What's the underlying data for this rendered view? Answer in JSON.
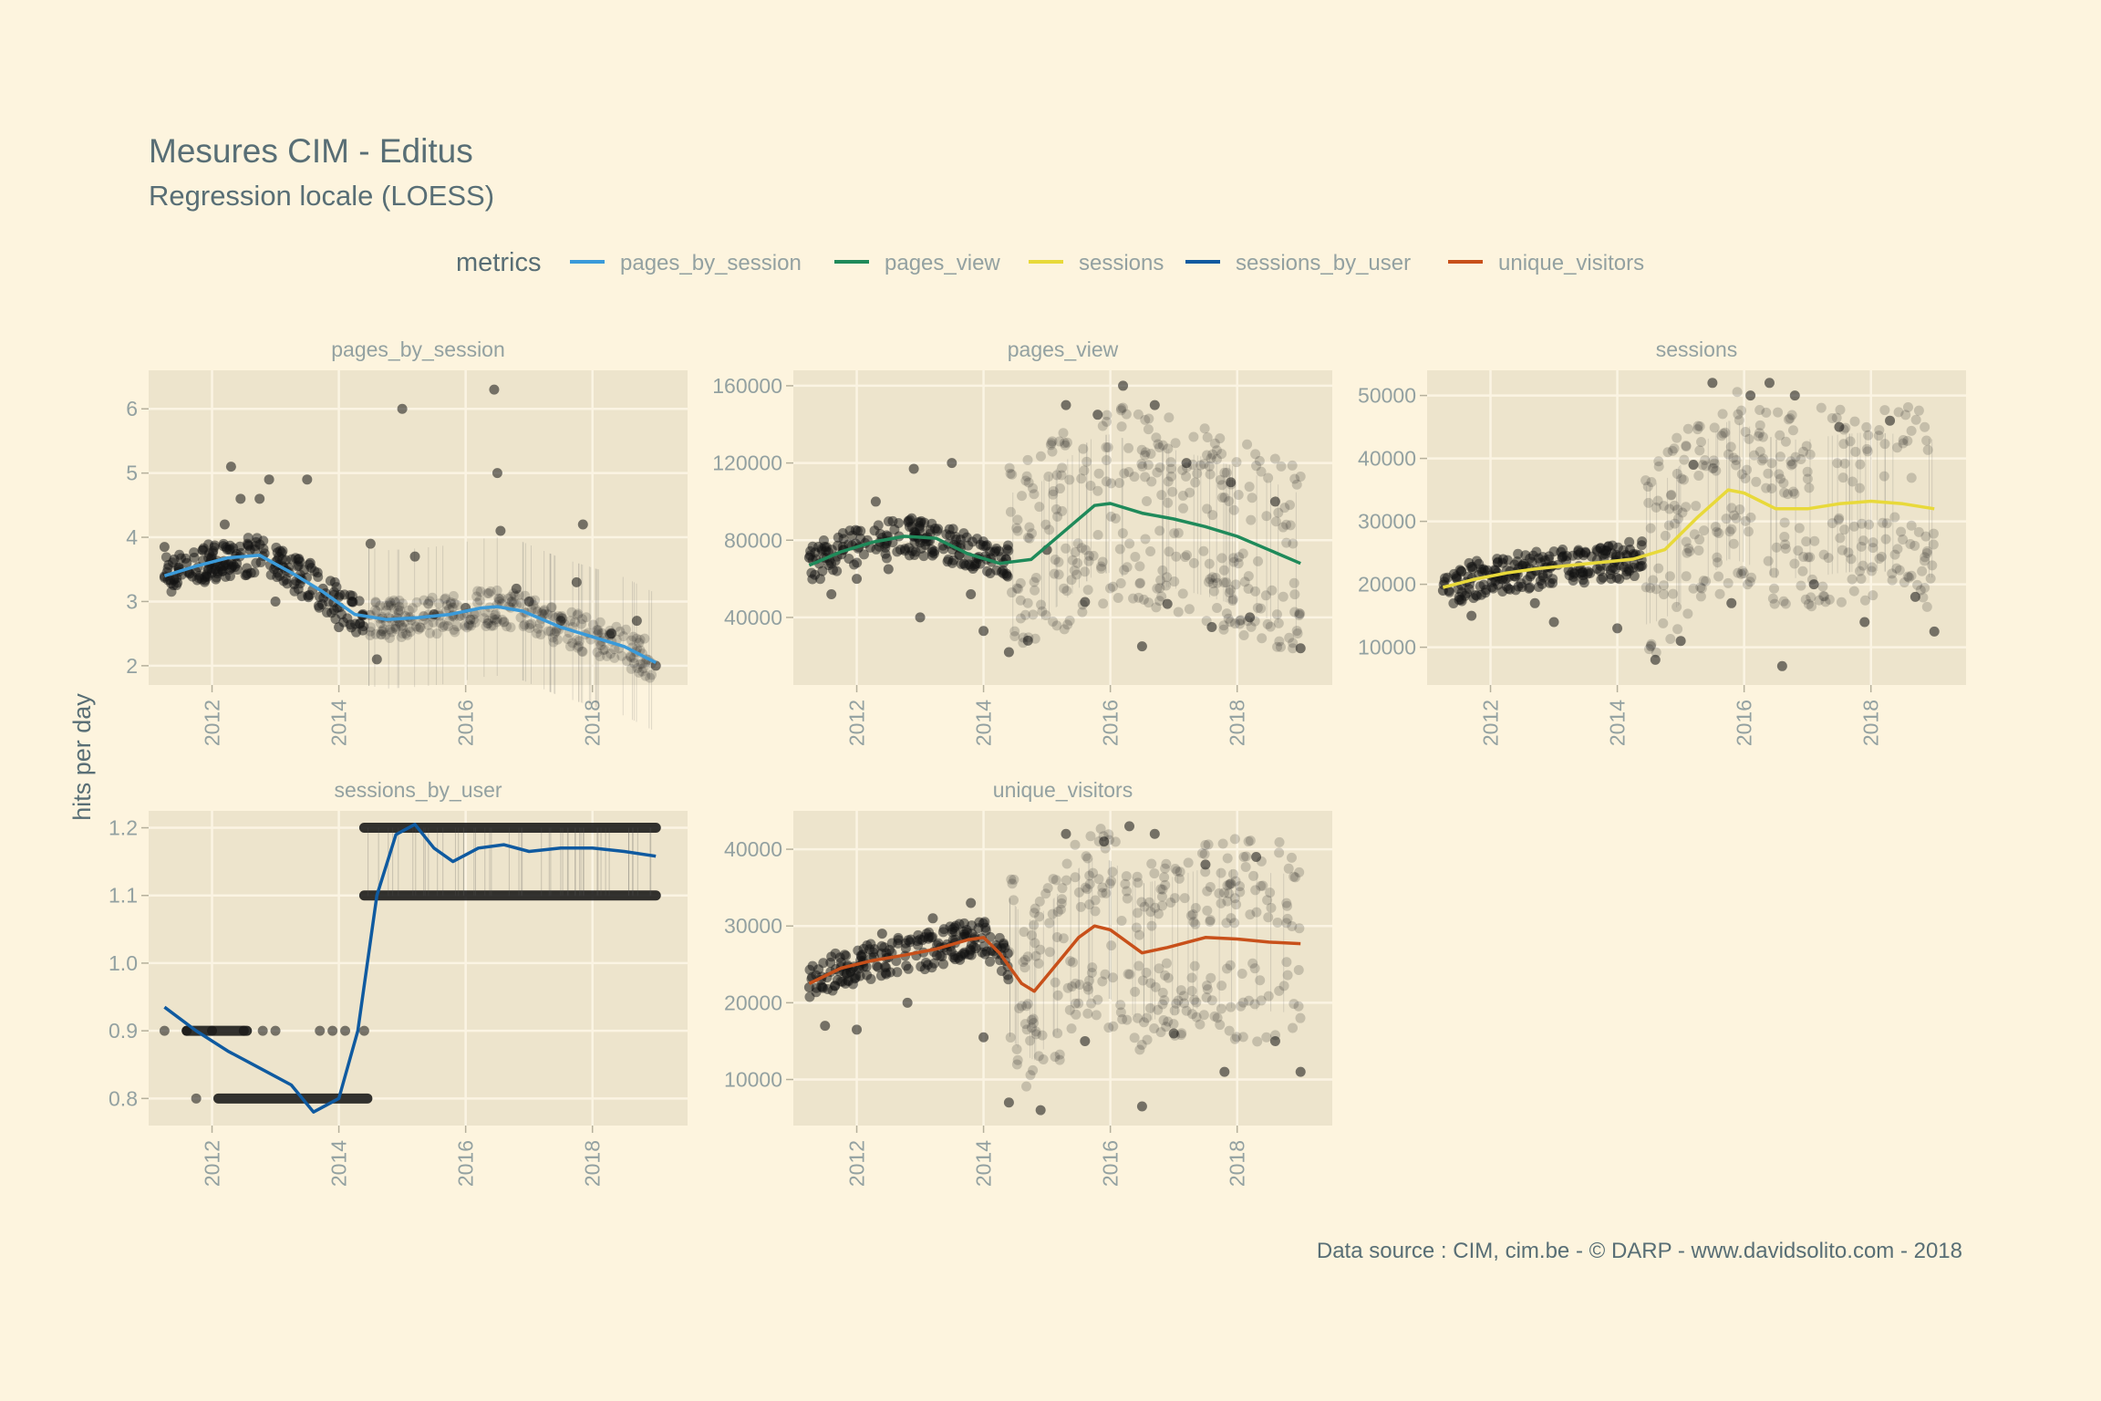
{
  "title": "Mesures CIM - Editus",
  "subtitle": "Regression locale (LOESS)",
  "caption": "Data source : CIM, cim.be - © DARP - www.davidsolito.com - 2018",
  "ylabel": "hits per day",
  "legend": {
    "title": "metrics",
    "position": "top",
    "items": [
      {
        "label": "pages_by_session",
        "color": "#3a9ad9"
      },
      {
        "label": "pages_view",
        "color": "#1f8a5a"
      },
      {
        "label": "sessions",
        "color": "#e8d93a"
      },
      {
        "label": "sessions_by_user",
        "color": "#0f5aa0"
      },
      {
        "label": "unique_visitors",
        "color": "#c8501a"
      }
    ]
  },
  "chart_data": [
    {
      "type": "scatter",
      "name": "pages_by_session",
      "xlim": [
        2011.0,
        2019.5
      ],
      "ylim": [
        1.7,
        6.6
      ],
      "x_ticks": [
        "2012",
        "2014",
        "2016",
        "2018"
      ],
      "y_ticks": [
        "2",
        "3",
        "4",
        "5",
        "6"
      ],
      "grid": true,
      "color": "#3a9ad9",
      "trend": [
        [
          2011.25,
          3.4
        ],
        [
          2011.75,
          3.55
        ],
        [
          2012.25,
          3.68
        ],
        [
          2012.75,
          3.72
        ],
        [
          2013.25,
          3.45
        ],
        [
          2013.75,
          3.15
        ],
        [
          2014.25,
          2.8
        ],
        [
          2014.75,
          2.72
        ],
        [
          2015.25,
          2.75
        ],
        [
          2015.75,
          2.8
        ],
        [
          2016.25,
          2.9
        ],
        [
          2016.5,
          2.92
        ],
        [
          2016.9,
          2.85
        ],
        [
          2017.5,
          2.6
        ],
        [
          2018.0,
          2.45
        ],
        [
          2018.5,
          2.3
        ],
        [
          2019.0,
          2.05
        ]
      ],
      "points": [
        [
          2011.25,
          3.85
        ],
        [
          2011.6,
          3.6
        ],
        [
          2012.05,
          3.5
        ],
        [
          2012.2,
          4.2
        ],
        [
          2012.3,
          5.1
        ],
        [
          2012.45,
          4.6
        ],
        [
          2012.6,
          3.8
        ],
        [
          2012.75,
          4.6
        ],
        [
          2012.9,
          4.9
        ],
        [
          2013.0,
          3.0
        ],
        [
          2013.5,
          4.9
        ],
        [
          2013.55,
          3.6
        ],
        [
          2013.75,
          3.2
        ],
        [
          2014.0,
          2.6
        ],
        [
          2014.2,
          3.0
        ],
        [
          2014.5,
          3.9
        ],
        [
          2014.6,
          2.1
        ],
        [
          2015.0,
          6.0
        ],
        [
          2015.2,
          3.7
        ],
        [
          2015.5,
          2.8
        ],
        [
          2016.0,
          2.9
        ],
        [
          2016.45,
          6.3
        ],
        [
          2016.5,
          5.0
        ],
        [
          2016.55,
          4.1
        ],
        [
          2016.8,
          3.2
        ],
        [
          2017.0,
          3.0
        ],
        [
          2017.5,
          2.7
        ],
        [
          2017.75,
          3.3
        ],
        [
          2017.85,
          4.2
        ],
        [
          2018.3,
          2.5
        ],
        [
          2018.7,
          2.7
        ],
        [
          2019.0,
          2.0
        ]
      ]
    },
    {
      "type": "scatter",
      "name": "pages_view",
      "xlim": [
        2011.0,
        2019.5
      ],
      "ylim": [
        5000,
        168000
      ],
      "x_ticks": [
        "2012",
        "2014",
        "2016",
        "2018"
      ],
      "y_ticks": [
        "40000",
        "80000",
        "120000",
        "160000"
      ],
      "grid": true,
      "color": "#1f8a5a",
      "trend": [
        [
          2011.25,
          67000
        ],
        [
          2011.75,
          74000
        ],
        [
          2012.25,
          79000
        ],
        [
          2012.75,
          82000
        ],
        [
          2013.25,
          81000
        ],
        [
          2013.75,
          73000
        ],
        [
          2014.25,
          68000
        ],
        [
          2014.75,
          70000
        ],
        [
          2015.25,
          84000
        ],
        [
          2015.75,
          98000
        ],
        [
          2016.0,
          99000
        ],
        [
          2016.5,
          94000
        ],
        [
          2017.0,
          91000
        ],
        [
          2017.5,
          87000
        ],
        [
          2018.0,
          82000
        ],
        [
          2018.5,
          75000
        ],
        [
          2019.0,
          68000
        ]
      ],
      "points": [
        [
          2011.25,
          71000
        ],
        [
          2011.6,
          52000
        ],
        [
          2012.0,
          60000
        ],
        [
          2012.3,
          100000
        ],
        [
          2012.5,
          65000
        ],
        [
          2012.9,
          117000
        ],
        [
          2013.0,
          40000
        ],
        [
          2013.5,
          120000
        ],
        [
          2013.8,
          52000
        ],
        [
          2014.0,
          33000
        ],
        [
          2014.4,
          22000
        ],
        [
          2014.7,
          28000
        ],
        [
          2015.0,
          75000
        ],
        [
          2015.3,
          150000
        ],
        [
          2015.6,
          48000
        ],
        [
          2015.8,
          145000
        ],
        [
          2016.2,
          160000
        ],
        [
          2016.5,
          25000
        ],
        [
          2016.7,
          150000
        ],
        [
          2016.9,
          47000
        ],
        [
          2017.2,
          120000
        ],
        [
          2017.6,
          35000
        ],
        [
          2017.9,
          110000
        ],
        [
          2018.2,
          40000
        ],
        [
          2018.6,
          100000
        ],
        [
          2019.0,
          24000
        ]
      ]
    },
    {
      "type": "scatter",
      "name": "sessions",
      "xlim": [
        2011.0,
        2019.5
      ],
      "ylim": [
        4000,
        54000
      ],
      "x_ticks": [
        "2012",
        "2014",
        "2016",
        "2018"
      ],
      "y_ticks": [
        "10000",
        "20000",
        "30000",
        "40000",
        "50000"
      ],
      "grid": true,
      "color": "#e8d93a",
      "trend": [
        [
          2011.25,
          19500
        ],
        [
          2011.75,
          20800
        ],
        [
          2012.25,
          21800
        ],
        [
          2012.75,
          22500
        ],
        [
          2013.25,
          23000
        ],
        [
          2013.75,
          23500
        ],
        [
          2014.25,
          24000
        ],
        [
          2014.75,
          25500
        ],
        [
          2015.25,
          30500
        ],
        [
          2015.75,
          35000
        ],
        [
          2016.0,
          34500
        ],
        [
          2016.5,
          32000
        ],
        [
          2017.0,
          32000
        ],
        [
          2017.5,
          32800
        ],
        [
          2018.0,
          33200
        ],
        [
          2018.5,
          32800
        ],
        [
          2019.0,
          32000
        ]
      ],
      "points": [
        [
          2011.25,
          19000
        ],
        [
          2011.7,
          15000
        ],
        [
          2012.2,
          24000
        ],
        [
          2012.7,
          17000
        ],
        [
          2013.0,
          14000
        ],
        [
          2013.5,
          25000
        ],
        [
          2014.0,
          13000
        ],
        [
          2014.2,
          25500
        ],
        [
          2014.6,
          8000
        ],
        [
          2015.0,
          11000
        ],
        [
          2015.2,
          39000
        ],
        [
          2015.5,
          52000
        ],
        [
          2015.8,
          17000
        ],
        [
          2016.1,
          50000
        ],
        [
          2016.4,
          52000
        ],
        [
          2016.6,
          7000
        ],
        [
          2016.8,
          50000
        ],
        [
          2017.1,
          20000
        ],
        [
          2017.5,
          45000
        ],
        [
          2017.9,
          14000
        ],
        [
          2018.3,
          46000
        ],
        [
          2018.7,
          18000
        ],
        [
          2019.0,
          12500
        ]
      ]
    },
    {
      "type": "scatter",
      "name": "sessions_by_user",
      "xlim": [
        2011.0,
        2019.5
      ],
      "ylim": [
        0.76,
        1.225
      ],
      "x_ticks": [
        "2012",
        "2014",
        "2016",
        "2018"
      ],
      "y_ticks": [
        "0.8",
        "0.9",
        "1.0",
        "1.1",
        "1.2"
      ],
      "grid": true,
      "color": "#0f5aa0",
      "trend": [
        [
          2011.25,
          0.935
        ],
        [
          2011.75,
          0.9
        ],
        [
          2012.25,
          0.87
        ],
        [
          2012.75,
          0.845
        ],
        [
          2013.25,
          0.82
        ],
        [
          2013.6,
          0.78
        ],
        [
          2014.0,
          0.8
        ],
        [
          2014.3,
          0.9
        ],
        [
          2014.6,
          1.1
        ],
        [
          2014.9,
          1.19
        ],
        [
          2015.2,
          1.205
        ],
        [
          2015.5,
          1.17
        ],
        [
          2015.8,
          1.15
        ],
        [
          2016.2,
          1.17
        ],
        [
          2016.6,
          1.175
        ],
        [
          2017.0,
          1.165
        ],
        [
          2017.5,
          1.17
        ],
        [
          2018.0,
          1.17
        ],
        [
          2018.5,
          1.165
        ],
        [
          2019.0,
          1.158
        ]
      ],
      "points": [
        [
          2011.25,
          0.9
        ],
        [
          2011.6,
          0.9
        ],
        [
          2011.75,
          0.8
        ],
        [
          2012.0,
          0.9
        ],
        [
          2012.5,
          0.9
        ],
        [
          2012.8,
          0.9
        ],
        [
          2013.0,
          0.9
        ],
        [
          2013.7,
          0.9
        ],
        [
          2013.9,
          0.9
        ],
        [
          2014.1,
          0.9
        ],
        [
          2014.4,
          0.9
        ]
      ],
      "bands": [
        {
          "y": 0.9,
          "x_from": 2011.6,
          "x_to": 2012.55
        },
        {
          "y": 0.8,
          "x_from": 2012.1,
          "x_to": 2014.45
        },
        {
          "y": 1.2,
          "x_from": 2014.4,
          "x_to": 2019.0
        },
        {
          "y": 1.1,
          "x_from": 2014.4,
          "x_to": 2019.0
        }
      ]
    },
    {
      "type": "scatter",
      "name": "unique_visitors",
      "xlim": [
        2011.0,
        2019.5
      ],
      "ylim": [
        4000,
        45000
      ],
      "x_ticks": [
        "2012",
        "2014",
        "2016",
        "2018"
      ],
      "y_ticks": [
        "10000",
        "20000",
        "30000",
        "40000"
      ],
      "grid": true,
      "color": "#c8501a",
      "trend": [
        [
          2011.25,
          22500
        ],
        [
          2011.75,
          24500
        ],
        [
          2012.25,
          25500
        ],
        [
          2012.75,
          26200
        ],
        [
          2013.25,
          27000
        ],
        [
          2013.75,
          28200
        ],
        [
          2014.0,
          28500
        ],
        [
          2014.25,
          26500
        ],
        [
          2014.6,
          22500
        ],
        [
          2014.8,
          21500
        ],
        [
          2015.1,
          24500
        ],
        [
          2015.5,
          28500
        ],
        [
          2015.75,
          30000
        ],
        [
          2016.0,
          29500
        ],
        [
          2016.5,
          26500
        ],
        [
          2016.9,
          27200
        ],
        [
          2017.5,
          28500
        ],
        [
          2018.0,
          28300
        ],
        [
          2018.5,
          27900
        ],
        [
          2019.0,
          27700
        ]
      ],
      "points": [
        [
          2011.25,
          22000
        ],
        [
          2011.5,
          17000
        ],
        [
          2012.0,
          16500
        ],
        [
          2012.4,
          29000
        ],
        [
          2012.8,
          20000
        ],
        [
          2013.2,
          31000
        ],
        [
          2013.8,
          33000
        ],
        [
          2014.0,
          15500
        ],
        [
          2014.4,
          7000
        ],
        [
          2014.9,
          6000
        ],
        [
          2015.3,
          42000
        ],
        [
          2015.6,
          15000
        ],
        [
          2015.9,
          41000
        ],
        [
          2016.3,
          43000
        ],
        [
          2016.5,
          6500
        ],
        [
          2016.7,
          42000
        ],
        [
          2017.0,
          16000
        ],
        [
          2017.5,
          38000
        ],
        [
          2017.8,
          11000
        ],
        [
          2018.3,
          39000
        ],
        [
          2018.6,
          15000
        ],
        [
          2019.0,
          11000
        ]
      ]
    }
  ]
}
